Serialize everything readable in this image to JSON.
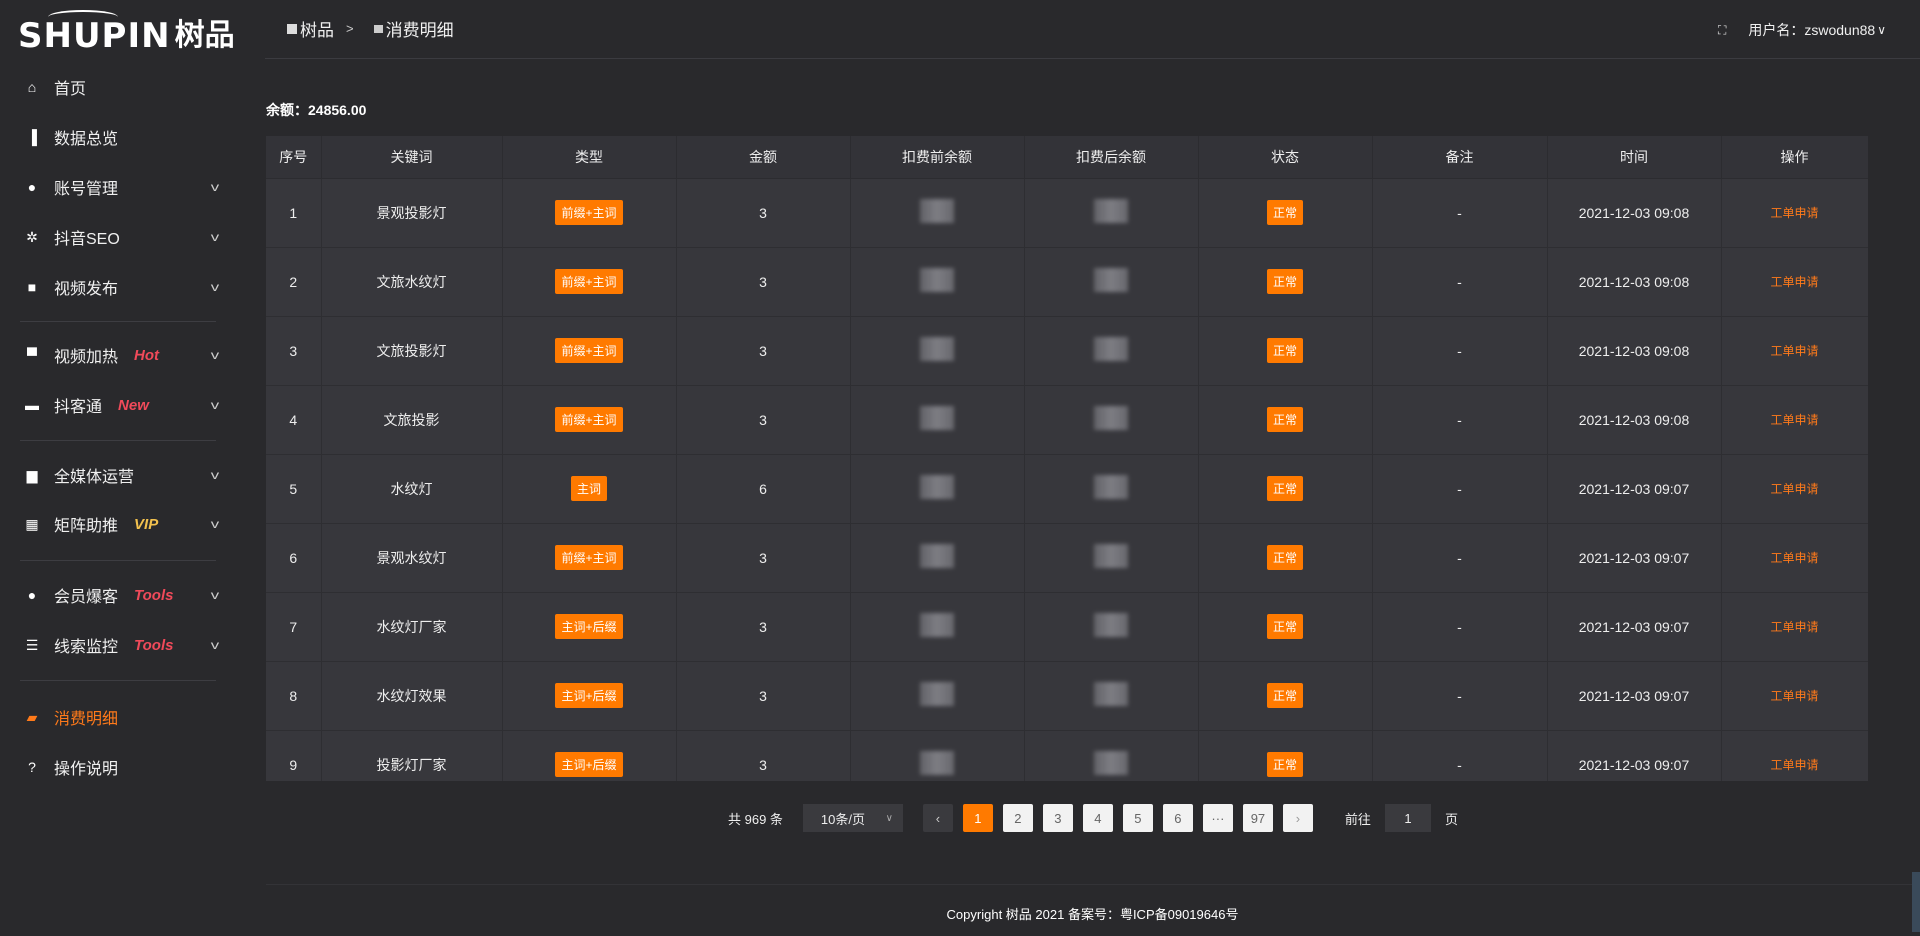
{
  "logo": {
    "en": "SHUPIN",
    "cn": "树品"
  },
  "sidebar": {
    "items": [
      {
        "label": "首页",
        "icon": "home-icon",
        "glyph": "⌂"
      },
      {
        "label": "数据总览",
        "icon": "bar-chart-icon",
        "glyph": "▐"
      },
      {
        "label": "账号管理",
        "icon": "user-icon",
        "glyph": "●",
        "chevron": true
      },
      {
        "label": "抖音SEO",
        "icon": "gear-icon",
        "glyph": "✲",
        "chevron": true
      },
      {
        "label": "视频发布",
        "icon": "video-camera-icon",
        "glyph": "■",
        "chevron": true
      },
      {
        "label": "视频加热",
        "icon": "billboard-icon",
        "glyph": "▀",
        "chevron": true,
        "tag": "Hot",
        "tag_color": "#f04a5a"
      },
      {
        "label": "抖客通",
        "icon": "chat-icon",
        "glyph": "▬",
        "chevron": true,
        "tag": "New",
        "tag_color": "#f04a5a"
      },
      {
        "label": "全媒体运营",
        "icon": "monitor-icon",
        "glyph": "▆",
        "chevron": true
      },
      {
        "label": "矩阵助推",
        "icon": "grid-icon",
        "glyph": "▦",
        "chevron": true,
        "tag": "VIP",
        "tag_color": "#f2c14e"
      },
      {
        "label": "会员爆客",
        "icon": "user-icon",
        "glyph": "●",
        "chevron": true,
        "tag": "Tools",
        "tag_color": "#f04a5a"
      },
      {
        "label": "线索监控",
        "icon": "sliders-icon",
        "glyph": "☰",
        "chevron": true,
        "tag": "Tools",
        "tag_color": "#f04a5a"
      },
      {
        "label": "消费明细",
        "icon": "wallet-icon",
        "glyph": "▰",
        "active": true
      },
      {
        "label": "操作说明",
        "icon": "help-icon",
        "glyph": "?"
      }
    ]
  },
  "header": {
    "breadcrumb": [
      "树品",
      "消费明细"
    ],
    "breadcrumb_sep": ">",
    "username": "用户名：zswodun88",
    "chevron": "∨"
  },
  "balance": "余额：24856.00",
  "table": {
    "columns": [
      "序号",
      "关键词",
      "类型",
      "金额",
      "扣费前余额",
      "扣费后余额",
      "状态",
      "备注",
      "时间",
      "操作"
    ],
    "rows": [
      {
        "no": "1",
        "keyword": "景观投影灯",
        "type": "前缀+主词",
        "amount": "3",
        "status": "正常",
        "note": "-",
        "time": "2021-12-03 09:08",
        "action": "工单申请"
      },
      {
        "no": "2",
        "keyword": "文旅水纹灯",
        "type": "前缀+主词",
        "amount": "3",
        "status": "正常",
        "note": "-",
        "time": "2021-12-03 09:08",
        "action": "工单申请"
      },
      {
        "no": "3",
        "keyword": "文旅投影灯",
        "type": "前缀+主词",
        "amount": "3",
        "status": "正常",
        "note": "-",
        "time": "2021-12-03 09:08",
        "action": "工单申请"
      },
      {
        "no": "4",
        "keyword": "文旅投影",
        "type": "前缀+主词",
        "amount": "3",
        "status": "正常",
        "note": "-",
        "time": "2021-12-03 09:08",
        "action": "工单申请"
      },
      {
        "no": "5",
        "keyword": "水纹灯",
        "type": "主词",
        "amount": "6",
        "status": "正常",
        "note": "-",
        "time": "2021-12-03 09:07",
        "action": "工单申请"
      },
      {
        "no": "6",
        "keyword": "景观水纹灯",
        "type": "前缀+主词",
        "amount": "3",
        "status": "正常",
        "note": "-",
        "time": "2021-12-03 09:07",
        "action": "工单申请"
      },
      {
        "no": "7",
        "keyword": "水纹灯厂家",
        "type": "主词+后缀",
        "amount": "3",
        "status": "正常",
        "note": "-",
        "time": "2021-12-03 09:07",
        "action": "工单申请"
      },
      {
        "no": "8",
        "keyword": "水纹灯效果",
        "type": "主词+后缀",
        "amount": "3",
        "status": "正常",
        "note": "-",
        "time": "2021-12-03 09:07",
        "action": "工单申请"
      },
      {
        "no": "9",
        "keyword": "投影灯厂家",
        "type": "主词+后缀",
        "amount": "3",
        "status": "正常",
        "note": "-",
        "time": "2021-12-03 09:07",
        "action": "工单申请"
      }
    ]
  },
  "pagination": {
    "total": "共 969 条",
    "page_size": "10条/页",
    "prev": "‹",
    "next": "›",
    "pages": [
      "1",
      "2",
      "3",
      "4",
      "5",
      "6",
      "···",
      "97"
    ],
    "current": "1",
    "goto_label": "前往",
    "goto_value": "1",
    "page_suffix": "页"
  },
  "footer": {
    "copyright": "Copyright 树品 2021 备案号：粤ICP备09019646号"
  },
  "colors": {
    "accent": "#ff7a00",
    "background": "#29292c",
    "table": "#37373c"
  }
}
